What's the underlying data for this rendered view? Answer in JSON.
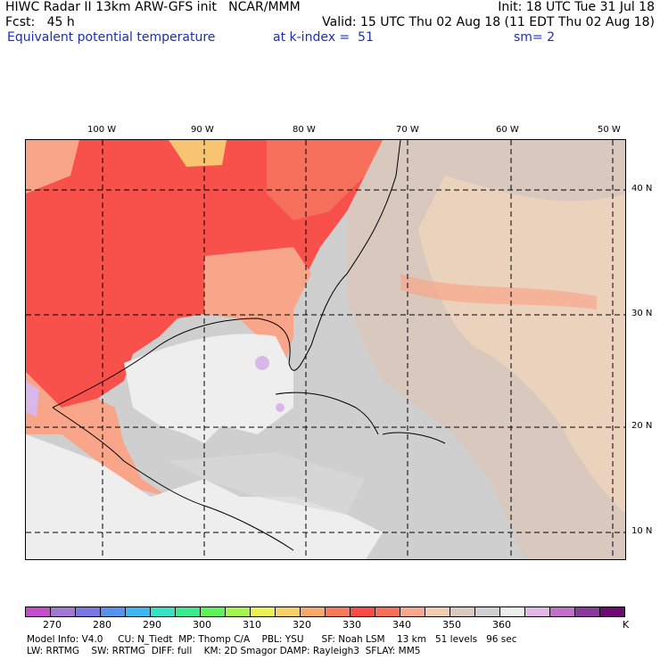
{
  "header": {
    "line1_left": "HIWC Radar II 13km ARW-GFS init   NCAR/MMM",
    "line1_right": "Init: 18 UTC Tue 31 Jul 18",
    "line2_left": "Fcst:   45 h",
    "line2_right": "Valid: 15 UTC Thu 02 Aug 18 (11 EDT Thu 02 Aug 18)",
    "line3_field": "Equivalent potential temperature",
    "line3_level": "at k-index =  51",
    "line3_smooth": "sm= 2"
  },
  "map": {
    "lon_labels": [
      "100 W",
      "90 W",
      "80 W",
      "70 W",
      "60 W",
      "50 W"
    ],
    "lat_labels": [
      "40 N",
      "30 N",
      "20 N",
      "10 N"
    ],
    "colors": {
      "hot": "#f8504a",
      "warm": "#f9a58a",
      "peach": "#f5cbb0",
      "tan": "#d8c8bd",
      "gray": "#cfcfcf",
      "white": "#eeeeee",
      "violet": "#d9b7e8",
      "orange": "#f9c471"
    }
  },
  "colorbar": {
    "unit": "K",
    "ticks": [
      "270",
      "280",
      "290",
      "300",
      "310",
      "320",
      "330",
      "340",
      "350",
      "360"
    ],
    "colors": [
      "#c34ec9",
      "#a278d4",
      "#7a77e2",
      "#5b91ee",
      "#40b7f0",
      "#37e1c2",
      "#3bea8c",
      "#5ff25a",
      "#a4f550",
      "#e9f255",
      "#f8cf68",
      "#f8a869",
      "#f87a5a",
      "#f94c46",
      "#f6705b",
      "#f8a88c",
      "#f2cdb0",
      "#d8c8bd",
      "#cfcfcf",
      "#eeeeee",
      "#e0b7e7",
      "#c071c7",
      "#8a3a9a",
      "#6d0b73"
    ]
  },
  "footer": {
    "line1": "Model Info: V4.0     CU: N_Tiedt  MP: Thomp C/A    PBL: YSU      SF: Noah LSM    13 km   51 levels   96 sec",
    "line2": "LW: RRTMG    SW: RRTMG  DIFF: full    KM: 2D Smagor DAMP: Rayleigh3  SFLAY: MM5"
  }
}
